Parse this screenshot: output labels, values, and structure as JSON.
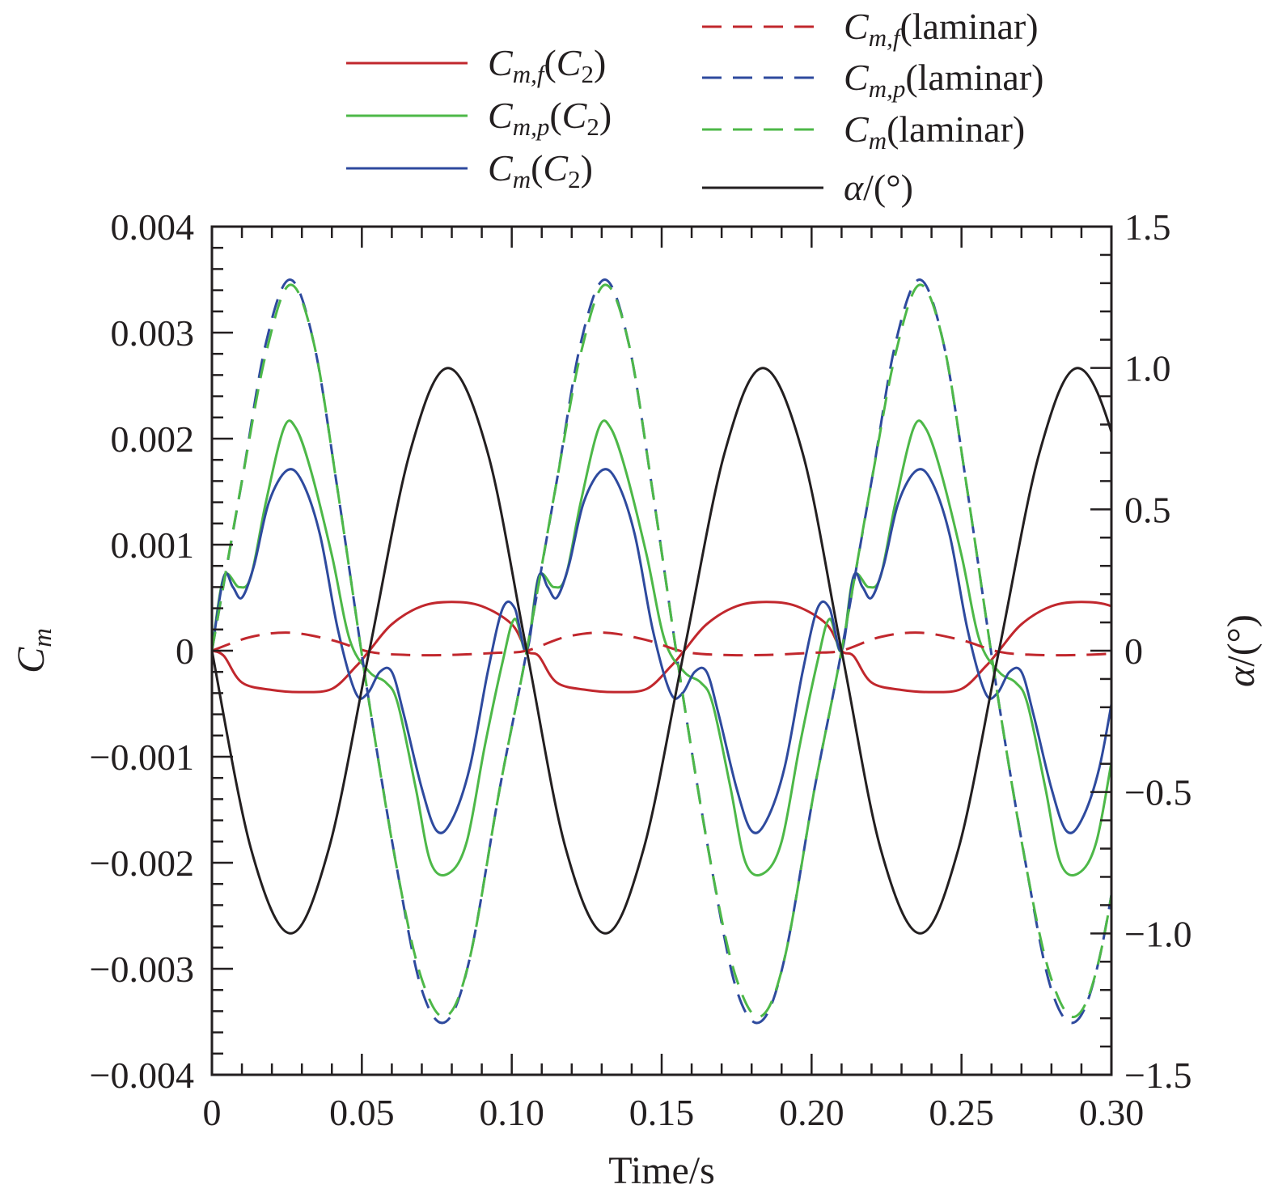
{
  "chart_data": {
    "type": "line",
    "xlabel": "Time/s",
    "ylabel": "C_m",
    "y2label": "α/(°)",
    "xlim": [
      0,
      0.3
    ],
    "ylim": [
      -0.004,
      0.004
    ],
    "y2lim": [
      -1.5,
      1.5
    ],
    "x_ticks": [
      "0",
      "0.05",
      "0.10",
      "0.15",
      "0.20",
      "0.25",
      "0.30"
    ],
    "y_ticks": [
      "0.004",
      "0.003",
      "0.002",
      "0.001",
      "0",
      "−0.001",
      "−0.002",
      "−0.003",
      "−0.004"
    ],
    "y2_ticks": [
      "1.5",
      "1.0",
      "0.5",
      "0",
      "−0.5",
      "−1.0",
      "−1.5"
    ],
    "legend_position": "top",
    "period_s": 0.105,
    "series": [
      {
        "name": "C_{m,f}(C_2)",
        "axis": "left",
        "color": "#c1272d",
        "dash": "solid",
        "points": [
          [
            0,
            0
          ],
          [
            0.004,
            -5e-05
          ],
          [
            0.01,
            -0.0003
          ],
          [
            0.02,
            -0.00037
          ],
          [
            0.03,
            -0.00039
          ],
          [
            0.04,
            -0.00036
          ],
          [
            0.048,
            -0.00015
          ],
          [
            0.0525,
            0
          ],
          [
            0.06,
            0.00025
          ],
          [
            0.07,
            0.00042
          ],
          [
            0.08,
            0.00046
          ],
          [
            0.09,
            0.00042
          ],
          [
            0.1,
            0.00025
          ],
          [
            0.105,
            0
          ]
        ]
      },
      {
        "name": "C_{m,p}(C_2)",
        "axis": "left",
        "color": "#4db848",
        "dash": "solid",
        "points": [
          [
            0,
            0
          ],
          [
            0.004,
            0.0007
          ],
          [
            0.009,
            0.0006
          ],
          [
            0.013,
            0.0007
          ],
          [
            0.018,
            0.0014
          ],
          [
            0.024,
            0.0021
          ],
          [
            0.028,
            0.0021
          ],
          [
            0.033,
            0.0017
          ],
          [
            0.04,
            0.0009
          ],
          [
            0.046,
            0.0001
          ],
          [
            0.0525,
            -0.0002
          ],
          [
            0.058,
            -0.0003
          ],
          [
            0.062,
            -0.0005
          ],
          [
            0.068,
            -0.0013
          ],
          [
            0.073,
            -0.002
          ],
          [
            0.079,
            -0.0021
          ],
          [
            0.085,
            -0.0018
          ],
          [
            0.091,
            -0.0009
          ],
          [
            0.097,
            -0.0001
          ],
          [
            0.101,
            0.0003
          ],
          [
            0.105,
            0
          ]
        ]
      },
      {
        "name": "C_m(C_2)",
        "axis": "left",
        "color": "#2e4a9e",
        "dash": "solid",
        "points": [
          [
            0,
            0
          ],
          [
            0.004,
            0.0007
          ],
          [
            0.007,
            0.0006
          ],
          [
            0.01,
            0.0005
          ],
          [
            0.014,
            0.0008
          ],
          [
            0.019,
            0.0014
          ],
          [
            0.025,
            0.0017
          ],
          [
            0.03,
            0.0016
          ],
          [
            0.036,
            0.0011
          ],
          [
            0.042,
            0.0002
          ],
          [
            0.048,
            -0.0004
          ],
          [
            0.052,
            -0.0004
          ],
          [
            0.056,
            -0.0002
          ],
          [
            0.06,
            -0.0002
          ],
          [
            0.064,
            -0.0006
          ],
          [
            0.07,
            -0.0013
          ],
          [
            0.075,
            -0.0017
          ],
          [
            0.08,
            -0.0016
          ],
          [
            0.086,
            -0.0011
          ],
          [
            0.092,
            -0.0002
          ],
          [
            0.097,
            0.0004
          ],
          [
            0.101,
            0.0004
          ],
          [
            0.105,
            0
          ]
        ]
      },
      {
        "name": "C_{m,f}(laminar)",
        "axis": "left",
        "color": "#c1272d",
        "dash": "dashed",
        "points": [
          [
            0,
            0
          ],
          [
            0.013,
            0.00013
          ],
          [
            0.026,
            0.00017
          ],
          [
            0.04,
            0.0001
          ],
          [
            0.0525,
            -1e-05
          ],
          [
            0.065,
            -4e-05
          ],
          [
            0.08,
            -4e-05
          ],
          [
            0.095,
            -2e-05
          ],
          [
            0.105,
            0
          ]
        ]
      },
      {
        "name": "C_{m,p}(laminar)",
        "axis": "left",
        "color": "#2e4a9e",
        "dash": "dashed",
        "points": [
          [
            0,
            0
          ],
          [
            0.01,
            0.0016
          ],
          [
            0.018,
            0.0029
          ],
          [
            0.026,
            0.0035
          ],
          [
            0.034,
            0.0029
          ],
          [
            0.042,
            0.0015
          ],
          [
            0.0525,
            -0.0005
          ],
          [
            0.062,
            -0.0021
          ],
          [
            0.07,
            -0.0032
          ],
          [
            0.078,
            -0.0035
          ],
          [
            0.086,
            -0.0029
          ],
          [
            0.096,
            -0.0013
          ],
          [
            0.105,
            0
          ]
        ]
      },
      {
        "name": "C_m(laminar)",
        "axis": "left",
        "color": "#4db848",
        "dash": "dashed",
        "points": [
          [
            0,
            0
          ],
          [
            0.01,
            0.0016
          ],
          [
            0.018,
            0.0028
          ],
          [
            0.026,
            0.00345
          ],
          [
            0.034,
            0.0029
          ],
          [
            0.042,
            0.0015
          ],
          [
            0.0525,
            -0.0005
          ],
          [
            0.062,
            -0.0021
          ],
          [
            0.07,
            -0.0031
          ],
          [
            0.078,
            -0.00345
          ],
          [
            0.086,
            -0.0029
          ],
          [
            0.096,
            -0.0013
          ],
          [
            0.105,
            0
          ]
        ]
      },
      {
        "name": "α/(°)",
        "axis": "right",
        "color": "#231f20",
        "dash": "solid",
        "points": [
          [
            0,
            0
          ],
          [
            0.013,
            -0.7
          ],
          [
            0.02625,
            -1.0
          ],
          [
            0.039,
            -0.7
          ],
          [
            0.0525,
            0
          ],
          [
            0.066,
            0.7
          ],
          [
            0.07875,
            1.0
          ],
          [
            0.092,
            0.7
          ],
          [
            0.105,
            0
          ]
        ]
      }
    ]
  }
}
